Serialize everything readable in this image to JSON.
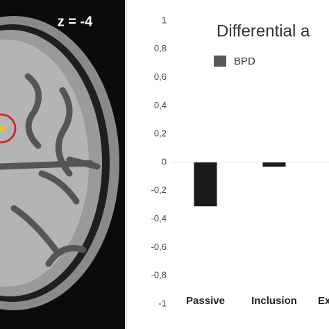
{
  "image": {
    "label": "z = -4"
  },
  "chart_data": {
    "type": "bar",
    "title": "Differential a",
    "categories": [
      "Passive",
      "Inclusion",
      "Ex"
    ],
    "series": [
      {
        "name": "BPD",
        "color": "#1a1a1a",
        "values": [
          -0.31,
          -0.03,
          null
        ]
      }
    ],
    "ylim": [
      -1,
      1
    ],
    "yticks": [
      -1,
      {
        "value": -0.8,
        "label": "-0,8"
      },
      {
        "value": -0.6,
        "label": "-0,6"
      },
      {
        "value": -0.4,
        "label": "-0,4"
      },
      {
        "value": -0.2,
        "label": "-0,2"
      },
      0,
      {
        "value": 0.2,
        "label": "0,2"
      },
      {
        "value": 0.4,
        "label": "0,4"
      },
      {
        "value": 0.6,
        "label": "0,6"
      },
      {
        "value": 0.8,
        "label": "0,8"
      },
      1
    ],
    "grid": false,
    "legend_color": "#595959"
  }
}
